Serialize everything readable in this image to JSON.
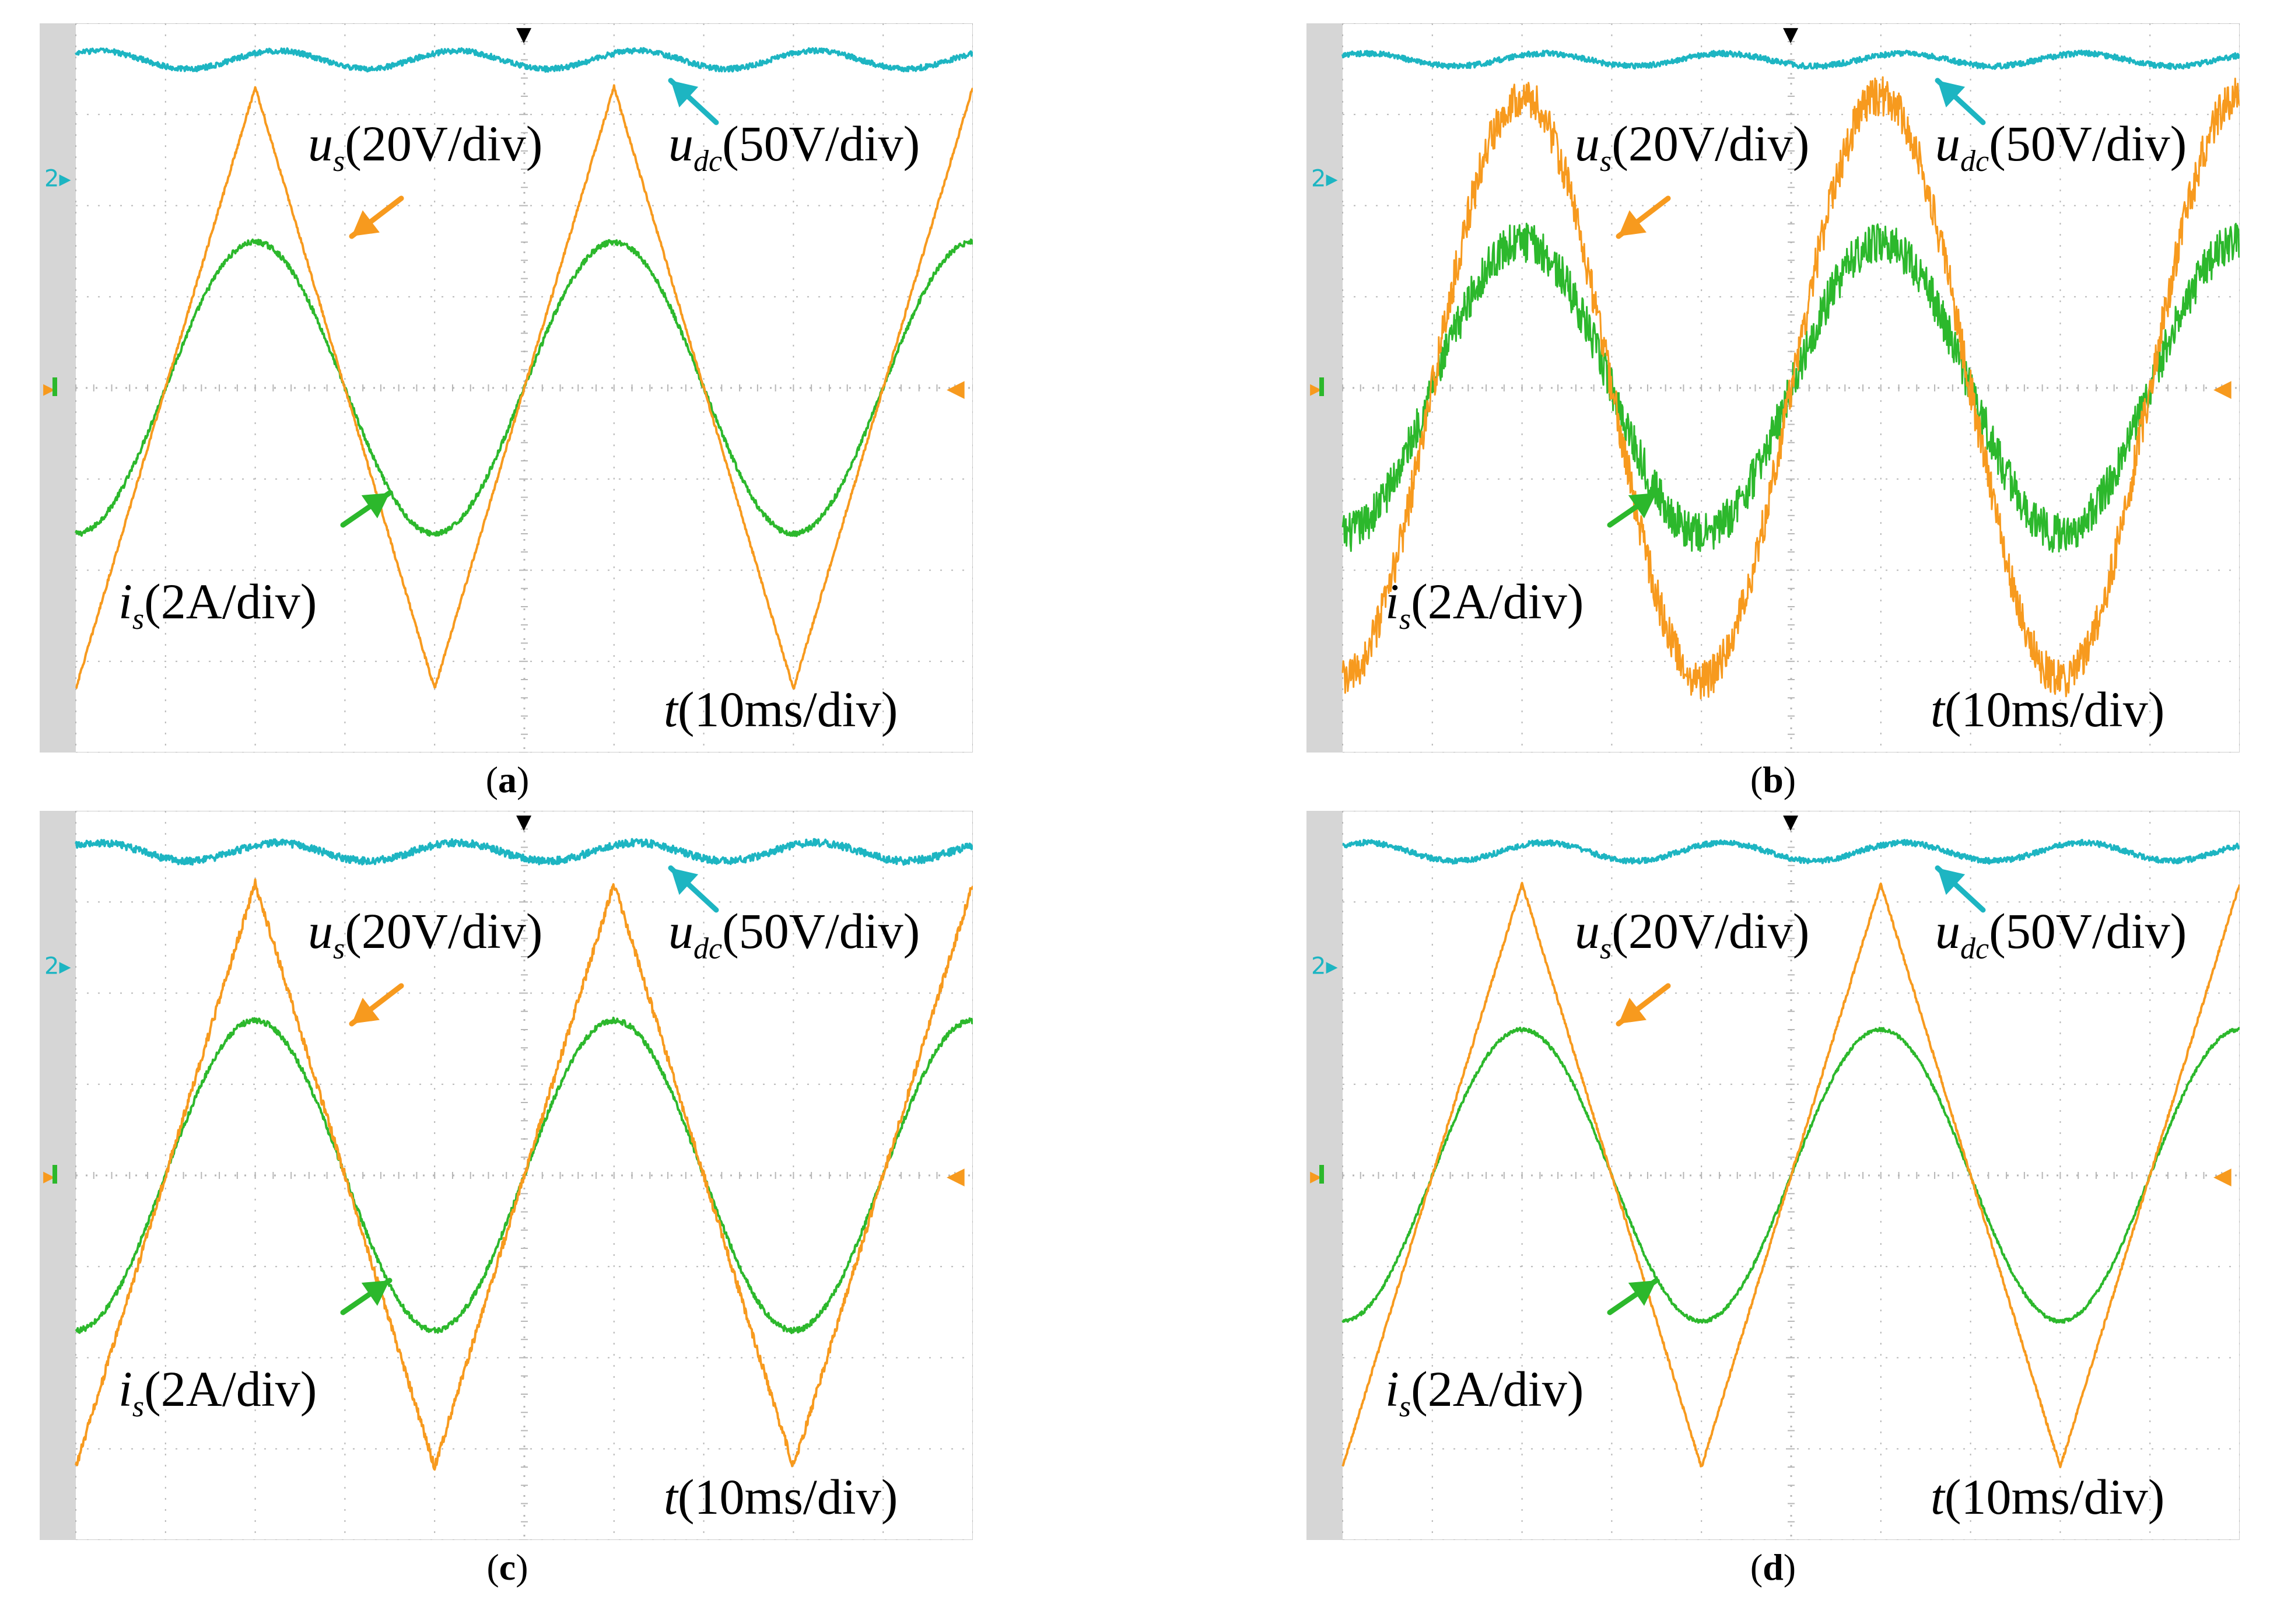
{
  "colors": {
    "udc": "#1db5c2",
    "us": "#f79a1e",
    "is": "#2cb82c",
    "grid": "#b7b7b7",
    "screen": "#ffffff",
    "sidebar": "#d6d6d6",
    "marker": "#000000"
  },
  "shared": {
    "ch2_marker": "2",
    "ground_marker_glyph": "◀",
    "trigger_glyph": "▼",
    "labels": {
      "us_sym": "u",
      "us_sub": "s",
      "us_scale": "(20V/div)",
      "udc_sym": "u",
      "udc_sub": "dc",
      "udc_scale": "(50V/div)",
      "is_sym": "i",
      "is_sub": "s",
      "is_scale": "(2A/div)",
      "t_sym": "t",
      "t_scale": "(10ms/div)"
    }
  },
  "panels": [
    {
      "id": "a",
      "caption_letter": "a"
    },
    {
      "id": "b",
      "caption_letter": "b"
    },
    {
      "id": "c",
      "caption_letter": "c"
    },
    {
      "id": "d",
      "caption_letter": "d"
    }
  ],
  "chart_data": [
    {
      "panel": "a",
      "type": "line",
      "title": "",
      "x_unit": "ms",
      "x_div": 10,
      "x_divisions": 10,
      "xlim": [
        0,
        100
      ],
      "y_unit": "div",
      "y_divisions": 8,
      "ylim": [
        -4,
        4
      ],
      "period_ms": 40,
      "series": [
        {
          "name": "u_dc",
          "scale": "50V/div",
          "kind": "sine",
          "offset_div": 3.6,
          "amplitude_div": 0.1,
          "period_ms": 20,
          "phase_ms": 2.5,
          "noise_div": 0.03
        },
        {
          "name": "u_s",
          "scale": "20V/div",
          "kind": "triangle",
          "offset_div": 0,
          "amplitude_div": 3.3,
          "period_ms": 40,
          "peak_at_ms": 20,
          "noise_div": 0.02
        },
        {
          "name": "i_s",
          "scale": "2A/div",
          "kind": "sine",
          "offset_div": 0,
          "amplitude_div": 1.6,
          "period_ms": 40,
          "peak_at_ms": 20,
          "noise_div": 0.03
        }
      ]
    },
    {
      "panel": "b",
      "type": "line",
      "title": "",
      "x_unit": "ms",
      "x_div": 10,
      "x_divisions": 10,
      "xlim": [
        0,
        100
      ],
      "y_unit": "div",
      "y_divisions": 8,
      "ylim": [
        -4,
        4
      ],
      "period_ms": 40,
      "series": [
        {
          "name": "u_dc",
          "scale": "50V/div",
          "kind": "sine",
          "offset_div": 3.6,
          "amplitude_div": 0.07,
          "period_ms": 20,
          "phase_ms": 2.5,
          "noise_div": 0.03
        },
        {
          "name": "u_s",
          "scale": "20V/div",
          "kind": "sine",
          "offset_div": 0,
          "amplitude_div": 3.2,
          "period_ms": 40,
          "peak_at_ms": 20,
          "noise_div": 0.22
        },
        {
          "name": "i_s",
          "scale": "2A/div",
          "kind": "sine",
          "offset_div": 0,
          "amplitude_div": 1.6,
          "period_ms": 40,
          "peak_at_ms": 20,
          "noise_div": 0.22
        }
      ]
    },
    {
      "panel": "c",
      "type": "line",
      "title": "",
      "x_unit": "ms",
      "x_div": 10,
      "x_divisions": 10,
      "xlim": [
        0,
        100
      ],
      "y_unit": "div",
      "y_divisions": 8,
      "ylim": [
        -4,
        4
      ],
      "period_ms": 40,
      "series": [
        {
          "name": "u_dc",
          "scale": "50V/div",
          "kind": "sine",
          "offset_div": 3.55,
          "amplitude_div": 0.1,
          "period_ms": 20,
          "phase_ms": 2.5,
          "noise_div": 0.04
        },
        {
          "name": "u_s",
          "scale": "20V/div",
          "kind": "triangle",
          "offset_div": 0,
          "amplitude_div": 3.2,
          "period_ms": 40,
          "peak_at_ms": 20,
          "noise_div": 0.05
        },
        {
          "name": "i_s",
          "scale": "2A/div",
          "kind": "sine",
          "offset_div": 0,
          "amplitude_div": 1.7,
          "period_ms": 40,
          "peak_at_ms": 20,
          "noise_div": 0.03
        }
      ]
    },
    {
      "panel": "d",
      "type": "line",
      "title": "",
      "x_unit": "ms",
      "x_div": 10,
      "x_divisions": 10,
      "xlim": [
        0,
        100
      ],
      "y_unit": "div",
      "y_divisions": 8,
      "ylim": [
        -4,
        4
      ],
      "period_ms": 40,
      "series": [
        {
          "name": "u_dc",
          "scale": "50V/div",
          "kind": "sine",
          "offset_div": 3.55,
          "amplitude_div": 0.1,
          "period_ms": 20,
          "phase_ms": 2.5,
          "noise_div": 0.03
        },
        {
          "name": "u_s",
          "scale": "20V/div",
          "kind": "triangle",
          "offset_div": 0,
          "amplitude_div": 3.2,
          "period_ms": 40,
          "peak_at_ms": 20,
          "noise_div": 0.02
        },
        {
          "name": "i_s",
          "scale": "2A/div",
          "kind": "sine",
          "offset_div": 0,
          "amplitude_div": 1.6,
          "period_ms": 40,
          "peak_at_ms": 20,
          "noise_div": 0.02
        }
      ]
    }
  ]
}
